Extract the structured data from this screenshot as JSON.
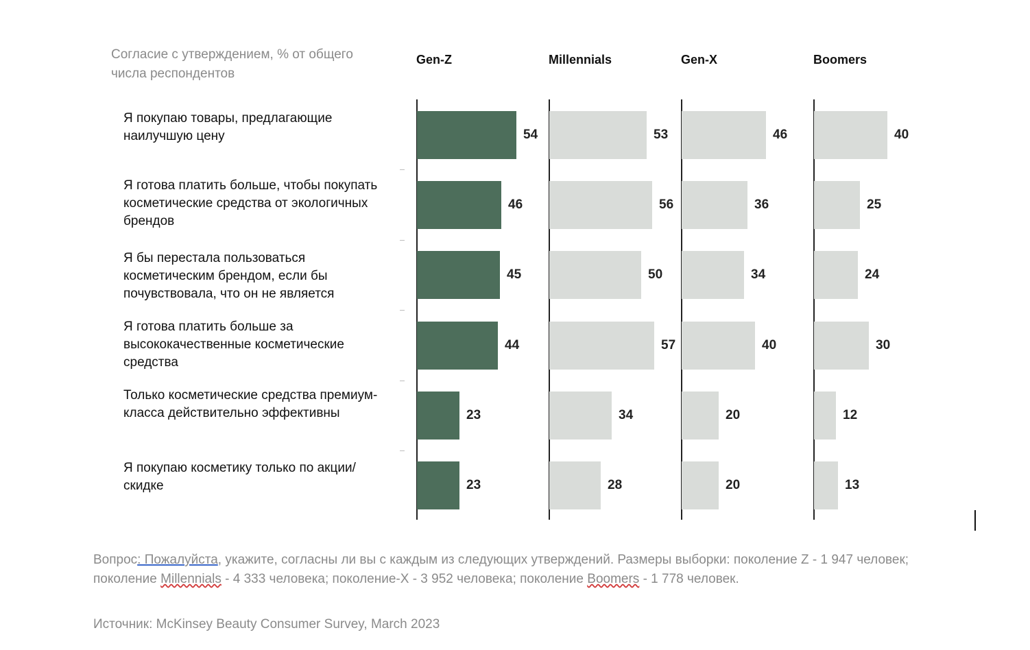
{
  "chart_data": {
    "type": "bar",
    "subtitle": "Согласие с утверждением, % от общего числа респондентов",
    "categories": [
      "Я покупаю товары, предлагающие наилучшую цену",
      "Я готова платить больше, чтобы покупать косметические средства от экологичных брендов",
      "Я бы перестала пользоваться косметическим брендом, если бы почувствовала, что он не является",
      "Я готова платить больше за высококачественные косметические средства",
      "Только косметические средства премиум-класса действительно эффективны",
      "Я покупаю косметику только по акции/скидке"
    ],
    "series": [
      {
        "name": "Gen-Z",
        "values": [
          54,
          46,
          45,
          44,
          23,
          23
        ],
        "color": "#4d6e5b"
      },
      {
        "name": "Millennials",
        "values": [
          53,
          56,
          50,
          57,
          34,
          28
        ],
        "color": "#d9dcd9"
      },
      {
        "name": "Gen-X",
        "values": [
          46,
          36,
          34,
          40,
          20,
          20
        ],
        "color": "#d9dcd9"
      },
      {
        "name": "Boomers",
        "values": [
          40,
          25,
          24,
          30,
          12,
          13
        ],
        "color": "#d9dcd9"
      }
    ],
    "legend": "column headers",
    "grid": false
  },
  "footer": {
    "question_prefix": "Вопрос",
    "question_link": ": Пожалуйста",
    "question_text_1": ", укажите, согласны ли вы с каждым из следующих утверждений. Размеры выборки: поколение Z - 1 947 человек; поколение ",
    "question_millennials": "Millennials",
    "question_text_2": " - 4 333 человека; поколение-X - 3 952 человека; поколение ",
    "question_boomers": "Boomers",
    "question_text_3": " - 1 778 человек.",
    "source": "Источник: McKinsey Beauty Consumer Survey, March 2023"
  }
}
